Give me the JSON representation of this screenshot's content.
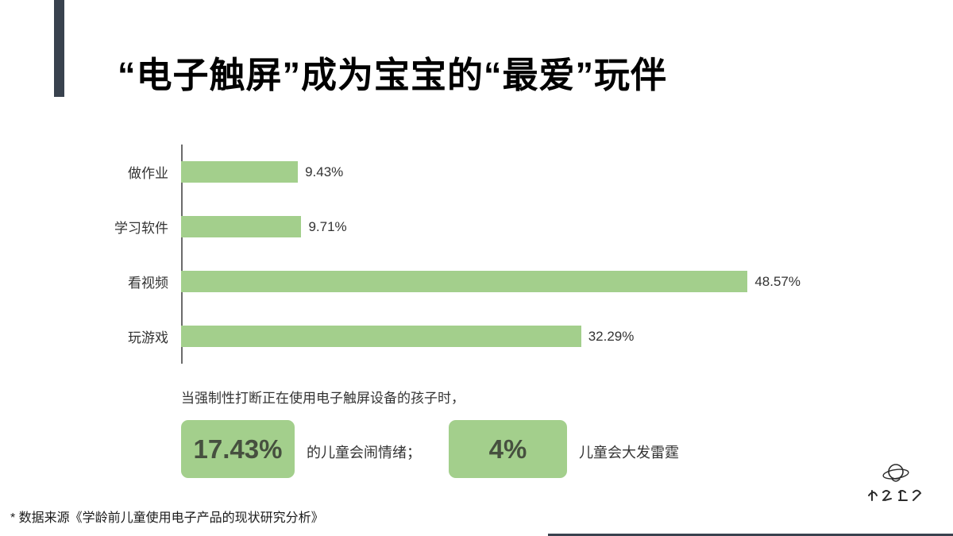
{
  "title": "“电子触屏”成为宝宝的“最爱”玩伴",
  "accent": {
    "bar_color": "#39424e",
    "green": "#a3cf8c"
  },
  "chart_data": {
    "type": "bar",
    "orientation": "horizontal",
    "title": "",
    "xlabel": "",
    "ylabel": "",
    "categories": [
      "做作业",
      "学习软件",
      "看视频",
      "玩游戏"
    ],
    "values": [
      9.43,
      9.71,
      48.57,
      32.29
    ],
    "value_labels": [
      "9.43%",
      "9.71%",
      "48.57%",
      "32.29%"
    ],
    "xlim": [
      0,
      50
    ],
    "grid": false,
    "legend": false,
    "bar_color": "#a3cf8c"
  },
  "callout": {
    "intro": "当强制性打断正在使用电子触屏设备的孩子时，",
    "stats": [
      {
        "value": "17.43%",
        "label": "的儿童会闹情绪；"
      },
      {
        "value": "4%",
        "label": "儿童会大发雷霆"
      }
    ]
  },
  "footer": {
    "source": "* 数据来源《学龄前儿童使用电子产品的现状研究分析》"
  }
}
